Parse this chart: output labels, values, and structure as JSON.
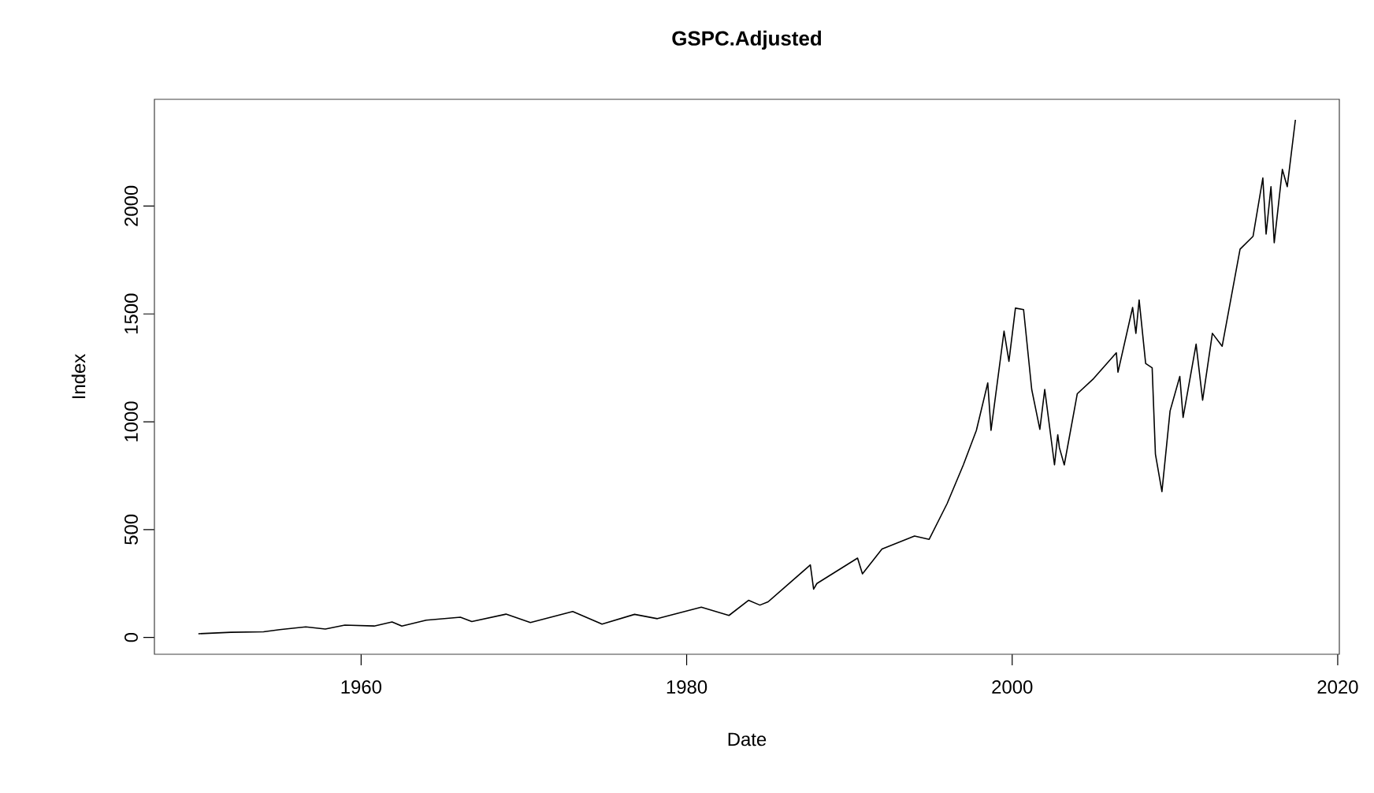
{
  "chart_data": {
    "type": "line",
    "title": "GSPC.Adjusted",
    "xlabel": "Date",
    "ylabel": "Index",
    "x": [
      1950.0,
      1952.0,
      1954.0,
      1955.0,
      1956.6,
      1957.8,
      1959.0,
      1960.8,
      1961.9,
      1962.5,
      1964.0,
      1966.1,
      1966.8,
      1968.9,
      1970.4,
      1973.0,
      1974.8,
      1976.8,
      1978.2,
      1980.9,
      1982.6,
      1983.8,
      1984.5,
      1985.0,
      1987.6,
      1987.8,
      1988.0,
      1990.5,
      1990.8,
      1992.0,
      1994.0,
      1994.9,
      1996.0,
      1997.0,
      1997.8,
      1998.5,
      1998.7,
      1999.5,
      1999.8,
      2000.2,
      2000.7,
      2001.2,
      2001.7,
      2002.0,
      2002.6,
      2002.8,
      2002.9,
      2003.2,
      2004.0,
      2005.0,
      2006.4,
      2006.5,
      2007.4,
      2007.6,
      2007.8,
      2008.2,
      2008.6,
      2008.8,
      2009.2,
      2009.7,
      2010.3,
      2010.5,
      2011.3,
      2011.7,
      2012.3,
      2012.9,
      2014.0,
      2014.8,
      2015.4,
      2015.6,
      2015.9,
      2016.1,
      2016.6,
      2016.9,
      2017.4
    ],
    "values": [
      17,
      24,
      26,
      36,
      49,
      39,
      57,
      53,
      72,
      53,
      80,
      94,
      74,
      108,
      69,
      120,
      62,
      107,
      87,
      140,
      102,
      172,
      150,
      165,
      336,
      224,
      250,
      368,
      295,
      410,
      470,
      455,
      620,
      800,
      960,
      1180,
      960,
      1420,
      1280,
      1527,
      1520,
      1150,
      965,
      1150,
      800,
      940,
      880,
      800,
      1130,
      1200,
      1320,
      1230,
      1530,
      1410,
      1565,
      1270,
      1250,
      850,
      676,
      1050,
      1210,
      1020,
      1360,
      1100,
      1410,
      1350,
      1800,
      1860,
      2130,
      1870,
      2090,
      1830,
      2170,
      2090,
      2400
    ],
    "color": "#000000",
    "xlim": [
      1947.3,
      2020.1
    ],
    "ylim": [
      -78,
      2495
    ],
    "xticks": [
      1960,
      1980,
      2000,
      2020
    ],
    "yticks": [
      0,
      500,
      1000,
      1500,
      2000
    ]
  }
}
